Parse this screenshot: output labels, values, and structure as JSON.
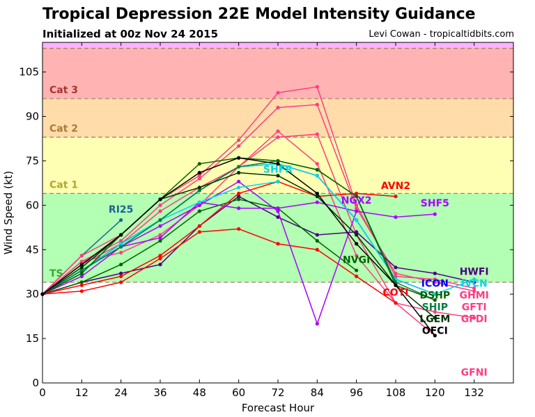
{
  "chart_data": {
    "type": "line",
    "title": "Tropical Depression 22E Model Intensity Guidance",
    "subtitle": "Initialized at 00z Nov 24 2015",
    "credit": "Levi Cowan - tropicaltidbits.com",
    "xlabel": "Forecast Hour",
    "ylabel": "Wind Speed (kt)",
    "xlim": [
      0,
      144
    ],
    "ylim": [
      0,
      115
    ],
    "xticks": [
      0,
      12,
      24,
      36,
      48,
      60,
      72,
      84,
      96,
      108,
      120,
      132
    ],
    "yticks": [
      0,
      15,
      30,
      45,
      60,
      75,
      90,
      105
    ],
    "grid": false,
    "bands": [
      {
        "label": "TS",
        "from": 34,
        "to": 64,
        "color": "#b3ffb3",
        "label_color": "#33aa33"
      },
      {
        "label": "Cat 1",
        "from": 64,
        "to": 83,
        "color": "#ffffb3",
        "label_color": "#aaaa33"
      },
      {
        "label": "Cat 2",
        "from": 83,
        "to": 96,
        "color": "#ffdcaa",
        "label_color": "#aa7a33"
      },
      {
        "label": "Cat 3",
        "from": 96,
        "to": 113,
        "color": "#ffb3b3",
        "label_color": "#aa3333"
      },
      {
        "label": "",
        "from": 113,
        "to": 115,
        "color": "#ffb3ff",
        "label_color": "#aa33aa"
      }
    ],
    "series": [
      {
        "name": "RI25",
        "color": "#1a6496",
        "x": [
          0,
          12,
          24
        ],
        "y": [
          30,
          43,
          55
        ],
        "label_at": [
          24,
          57.5
        ]
      },
      {
        "name": "GFNI",
        "color": "#ff3c82",
        "x": [
          0,
          12,
          24,
          36,
          48,
          60,
          72,
          84,
          96,
          108,
          120
        ],
        "y": [
          30,
          41,
          44,
          50,
          60,
          73,
          83,
          84,
          50,
          27,
          16
        ],
        "label_at": [
          132,
          2.5
        ]
      },
      {
        "name": "GFDI",
        "color": "#ff3c82",
        "x": [
          0,
          12,
          24,
          36,
          48,
          60,
          72,
          84,
          96,
          108,
          120,
          132
        ],
        "y": [
          30,
          40,
          47,
          58,
          66,
          73,
          85,
          74,
          43,
          27,
          24,
          22
        ],
        "label_at": [
          132,
          24.5
        ]
      },
      {
        "name": "GHMI",
        "color": "#ff3c82",
        "x": [
          0,
          12,
          24,
          36,
          48,
          60,
          72,
          84,
          96,
          108,
          120,
          132
        ],
        "y": [
          30,
          43,
          50,
          62,
          70,
          82,
          98,
          100,
          60,
          36,
          35,
          32
        ],
        "label_at": [
          132,
          34.6
        ]
      },
      {
        "name": "GFTI",
        "color": "#ff3c82",
        "x": [
          0,
          12,
          24,
          36,
          48,
          60,
          72,
          84,
          96,
          108,
          120,
          132
        ],
        "y": [
          30,
          41,
          48,
          60,
          69,
          80,
          93,
          94,
          59,
          37,
          34,
          31
        ],
        "label_at": [
          132,
          33.5
        ]
      },
      {
        "name": "HWFI",
        "color": "#4b0082",
        "x": [
          0,
          12,
          24,
          36,
          48,
          60,
          72,
          84,
          96,
          108,
          120,
          132
        ],
        "y": [
          30,
          34,
          37,
          40,
          53,
          63,
          56,
          50,
          51,
          39,
          37,
          34
        ],
        "label_at": [
          132,
          36.5
        ]
      },
      {
        "name": "NVGI",
        "color": "#006400",
        "x": [
          0,
          12,
          24,
          36,
          48,
          60,
          72,
          84,
          96
        ],
        "y": [
          30,
          34,
          40,
          48,
          58,
          62,
          59,
          48,
          38
        ],
        "label_at": [
          96,
          40.5
        ]
      },
      {
        "name": "AVN2",
        "color": "#ff0000",
        "x": [
          0,
          12,
          24,
          36,
          48,
          60,
          72,
          84,
          96,
          108
        ],
        "y": [
          30,
          33,
          36,
          43,
          53,
          64,
          68,
          63,
          64,
          63
        ],
        "label_at": [
          108,
          65.5
        ]
      },
      {
        "name": "COTI",
        "color": "#ff0000",
        "x": [
          0,
          12,
          24,
          36,
          48,
          60,
          72,
          84,
          96,
          108
        ],
        "y": [
          30,
          31,
          34,
          42,
          51,
          52,
          47,
          45,
          36,
          27
        ],
        "label_at": [
          108,
          29.5
        ]
      },
      {
        "name": "NGX2",
        "color": "#aa00ff",
        "x": [
          0,
          12,
          24,
          36,
          48,
          60,
          72,
          84,
          96
        ],
        "y": [
          30,
          36,
          46,
          53,
          60,
          68,
          58,
          20,
          58
        ],
        "label_at": [
          96,
          60.6
        ]
      },
      {
        "name": "SHF5",
        "color": "#aa00ff",
        "x": [
          0,
          12,
          24,
          36,
          48,
          60,
          72,
          84,
          96,
          108,
          120
        ],
        "y": [
          30,
          38,
          46,
          49,
          61,
          59,
          59,
          61,
          58,
          56,
          57
        ],
        "label_at": [
          120,
          59.6
        ]
      },
      {
        "name": "SHFR",
        "color": "#00d8e8",
        "x": [
          0,
          12,
          24,
          36,
          48,
          60,
          72
        ],
        "y": [
          30,
          38,
          47,
          55,
          61,
          66,
          68
        ],
        "label_at": [
          72,
          71
        ]
      },
      {
        "name": "ICON",
        "color": "#0000ff",
        "x": [
          0,
          12,
          24,
          36,
          48,
          60,
          72,
          84,
          96,
          108,
          120
        ],
        "y": [
          30,
          38,
          47,
          55,
          65,
          73,
          74,
          70,
          55,
          35,
          30
        ],
        "label_at": [
          120,
          32.5
        ]
      },
      {
        "name": "IVCN",
        "color": "#00d8e8",
        "x": [
          0,
          12,
          24,
          36,
          48,
          60,
          72,
          84,
          96,
          108,
          120,
          132
        ],
        "y": [
          30,
          38,
          47,
          55,
          65,
          73,
          74,
          70,
          55,
          35,
          30,
          35
        ],
        "label_at": [
          132,
          36.5
        ]
      },
      {
        "name": "SHIP",
        "color": "#008040",
        "x": [
          0,
          12,
          24,
          36,
          48,
          60,
          72,
          84,
          96,
          108,
          120
        ],
        "y": [
          30,
          38,
          46,
          55,
          65,
          73,
          75,
          72,
          63,
          34,
          28
        ],
        "label_at": [
          120,
          28
        ]
      },
      {
        "name": "DSHP",
        "color": "#006400",
        "x": [
          0,
          12,
          24,
          36,
          48,
          60,
          72,
          84,
          96,
          108,
          120
        ],
        "y": [
          30,
          37,
          50,
          62,
          74,
          76,
          75,
          72,
          63,
          33,
          28
        ],
        "label_at": [
          120,
          28.8
        ]
      },
      {
        "name": "LGEM",
        "color": "#003300",
        "x": [
          0,
          12,
          24,
          36,
          48,
          60,
          72,
          84,
          96,
          108,
          120
        ],
        "y": [
          30,
          39,
          50,
          62,
          66,
          71,
          70,
          63,
          50,
          33,
          22
        ],
        "label_at": [
          120,
          24.5
        ]
      },
      {
        "name": "OFCI",
        "color": "#000000",
        "x": [
          0,
          12,
          24,
          36,
          48,
          60,
          72,
          84,
          96,
          108,
          120
        ],
        "y": [
          30,
          40,
          50,
          62,
          71,
          76,
          74,
          64,
          47,
          33,
          16
        ],
        "label_at": [
          120,
          18.5
        ]
      }
    ]
  }
}
